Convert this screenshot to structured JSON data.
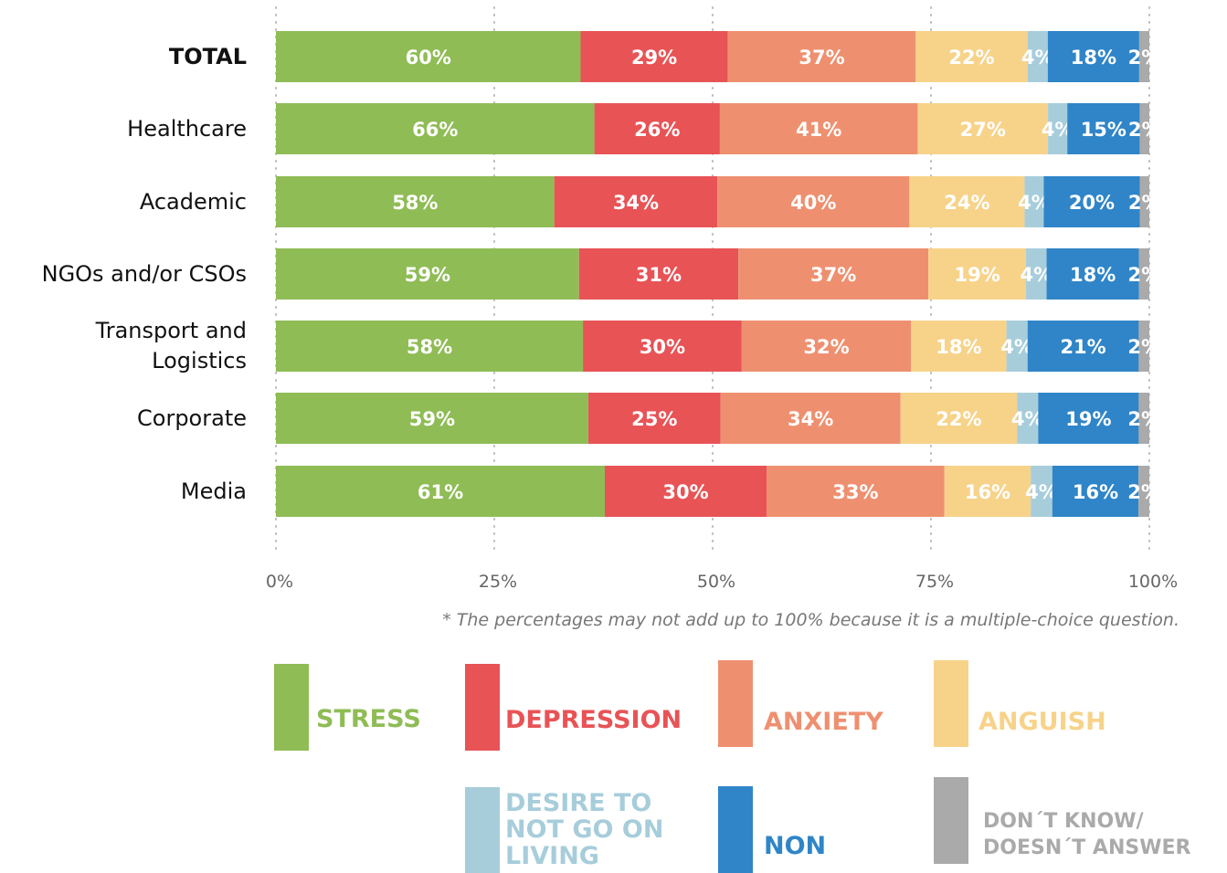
{
  "chart_data": {
    "type": "bar",
    "orientation": "horizontal",
    "stacked": "percent",
    "categories": [
      "TOTAL",
      "Healthcare",
      "Academic",
      "NGOs and/or CSOs",
      "Transport and Logistics",
      "Corporate",
      "Media"
    ],
    "series": [
      {
        "name": "STRESS",
        "color": "#8fbc55",
        "values": [
          60,
          66,
          58,
          59,
          58,
          59,
          61
        ],
        "value_labels": [
          "60%",
          "66%",
          "58%",
          "59%",
          "58%",
          "59%",
          "61%"
        ]
      },
      {
        "name": "DEPRESSION",
        "color": "#e85356",
        "values": [
          29,
          26,
          34,
          31,
          30,
          25,
          30
        ],
        "value_labels": [
          "29%",
          "26%",
          "34%",
          "31%",
          "30%",
          "25%",
          "30%"
        ]
      },
      {
        "name": "ANXIETY",
        "color": "#ee9070",
        "values": [
          37,
          41,
          40,
          37,
          32,
          34,
          33
        ],
        "value_labels": [
          "37%",
          "41%",
          "40%",
          "37%",
          "32%",
          "34%",
          "33%"
        ]
      },
      {
        "name": "ANGUISH",
        "color": "#f7d38a",
        "values": [
          22,
          27,
          24,
          19,
          18,
          22,
          16
        ],
        "value_labels": [
          "22%",
          "27%",
          "24%",
          "19%",
          "18%",
          "22%",
          "16%"
        ]
      },
      {
        "name": "DESIRE TO NOT GO ON LIVING",
        "color": "#a7cddb",
        "values": [
          4,
          4,
          4,
          4,
          4,
          4,
          4
        ],
        "value_labels": [
          "4%",
          "4%",
          "4%",
          "4%",
          "4%",
          "4%",
          "4%"
        ]
      },
      {
        "name": "NON",
        "color": "#2f85c8",
        "values": [
          18,
          15,
          20,
          18,
          21,
          19,
          16
        ],
        "value_labels": [
          "18%",
          "15%",
          "20%",
          "18%",
          "21%",
          "19%",
          "16%"
        ]
      },
      {
        "name": "DON´T KNOW/ DOESN´T ANSWER",
        "color": "#aaaaaa",
        "values": [
          2,
          2,
          2,
          2,
          2,
          2,
          2
        ],
        "value_labels": [
          "2%",
          "2%",
          "2%",
          "2%",
          "2%",
          "2%",
          "2%"
        ]
      }
    ],
    "xlim": [
      0,
      100
    ],
    "xticks": [
      {
        "value": 0,
        "label": "0%"
      },
      {
        "value": 25,
        "label": "25%"
      },
      {
        "value": 50,
        "label": "50%"
      },
      {
        "value": 75,
        "label": "75%"
      },
      {
        "value": 100,
        "label": "100%"
      }
    ],
    "grid": true,
    "annotation": "* The percentages may not add up to 100% because it is a multiple-choice question."
  }
}
